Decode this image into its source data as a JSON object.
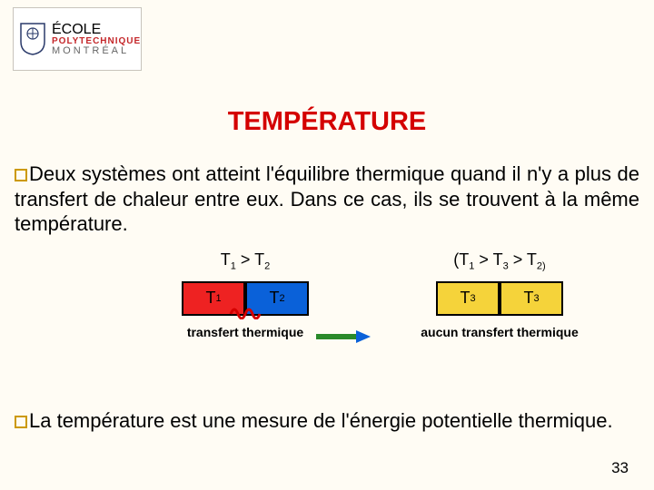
{
  "logo": {
    "line1": "ÉCOLE",
    "line2": "POLYTECHNIQUE",
    "line3": "MONTRÉAL",
    "shield_border": "#2a3a6a",
    "shield_fill": "#ffffff"
  },
  "title": {
    "text": "TEMPÉRATURE",
    "color": "#d40000",
    "fontsize": 29
  },
  "bullet_color": "#cc9900",
  "para1": "Deux systèmes ont atteint l'équilibre thermique quand il n'y a plus de transfert de chaleur entre eux. Dans ce cas, ils se trouvent à la même température.",
  "para2": "La température est une mesure de l'énergie potentielle thermique.",
  "diagram": {
    "left": {
      "inequality_html": "T<sub>1</sub> &gt; T<sub>2</sub>",
      "box1": {
        "label_html": "T<sub>1</sub>",
        "fill": "#ee2222"
      },
      "box2": {
        "label_html": "T<sub>2</sub>",
        "fill": "#0a61d9"
      },
      "caption": "transfert thermique",
      "wave_color": "#d40000"
    },
    "right": {
      "inequality_html": "(T<sub>1</sub> &gt; T<sub>3</sub> &gt; T<sub>2)</sub>",
      "box1": {
        "label_html": "T<sub>3</sub>",
        "fill": "#f5d33a"
      },
      "box2": {
        "label_html": "T<sub>3</sub>",
        "fill": "#f5d33a"
      },
      "caption": "aucun transfert thermique"
    },
    "arrow": {
      "shaft": "#2a8a2a",
      "head": "#0a61d9"
    }
  },
  "page_number": "33",
  "background": "#fffcf4"
}
